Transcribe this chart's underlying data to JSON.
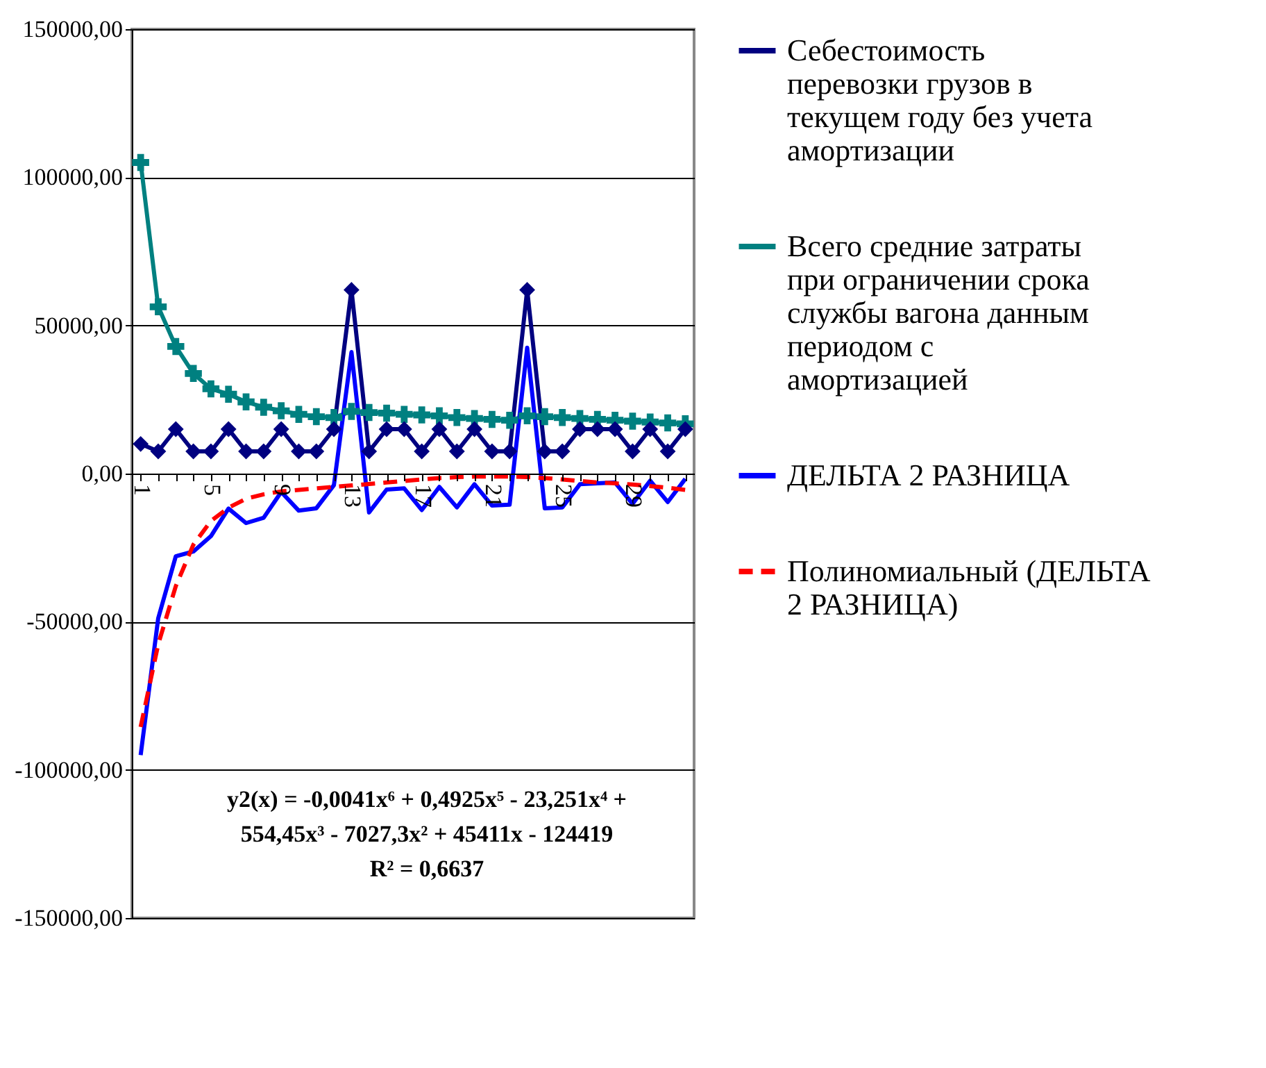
{
  "chart_data": {
    "type": "line",
    "categories": [
      "1",
      null,
      null,
      null,
      "5",
      null,
      null,
      null,
      "9",
      null,
      null,
      null,
      "13",
      null,
      null,
      null,
      "17",
      null,
      null,
      null,
      "21",
      null,
      null,
      null,
      "25",
      null,
      null,
      null,
      "29",
      null,
      null,
      null
    ],
    "series": [
      {
        "name": "Себестоимость перевозки грузов в текущем году без учета амортизации",
        "color": "#000080",
        "marker": "diamond",
        "values": [
          10000,
          7500,
          15000,
          7500,
          7500,
          15000,
          7500,
          7500,
          15000,
          7500,
          7500,
          15000,
          62000,
          7500,
          15000,
          15000,
          7500,
          15000,
          7500,
          15000,
          7500,
          7500,
          62000,
          7500,
          7500,
          15000,
          15000,
          15000,
          7500,
          15000,
          7500,
          15000
        ]
      },
      {
        "name": "Всего средние затраты при ограничении срока службы вагона данным периодом с амортизацией",
        "color": "#008080",
        "marker": "cross",
        "values": [
          105000,
          56300,
          42900,
          33800,
          28600,
          26800,
          24200,
          22400,
          21200,
          20000,
          19200,
          18900,
          21000,
          20600,
          20400,
          20000,
          19800,
          19500,
          18900,
          18600,
          18300,
          18000,
          19500,
          19200,
          18900,
          18600,
          18300,
          18000,
          17700,
          17400,
          17100,
          16800
        ]
      },
      {
        "name": "ДЕЛЬТА  2 РАЗНИЦА",
        "color": "#0000ff",
        "marker": "none",
        "values": [
          -95000,
          -48800,
          -27900,
          -26300,
          -21100,
          -11800,
          -16700,
          -14900,
          -6200,
          -12500,
          -11700,
          -3900,
          41000,
          -13100,
          -5400,
          -5000,
          -12300,
          -4500,
          -11400,
          -3600,
          -10800,
          -10500,
          42500,
          -11700,
          -11400,
          -3600,
          -3300,
          -3000,
          -10200,
          -2400,
          -9600,
          -1800
        ]
      },
      {
        "name": "Полиномиальный (ДЕЛЬТА  2 РАЗНИЦА)",
        "color": "#ff0000",
        "marker": "none",
        "line_style": "dashed",
        "values": [
          -85500,
          -57600,
          -38000,
          -24000,
          -16000,
          -11500,
          -8500,
          -7000,
          -6000,
          -5500,
          -5000,
          -4500,
          -4000,
          -3500,
          -3000,
          -2500,
          -2000,
          -1500,
          -1200,
          -1000,
          -1000,
          -1000,
          -1200,
          -1500,
          -2000,
          -2500,
          -3000,
          -3300,
          -3700,
          -4200,
          -4800,
          -5500
        ]
      }
    ],
    "ylim": [
      -150000,
      150000
    ],
    "yticks": [
      {
        "value": -150000,
        "label": "-150000,00"
      },
      {
        "value": -100000,
        "label": "-100000,00"
      },
      {
        "value": -50000,
        "label": "-50000,00"
      },
      {
        "value": 0,
        "label": "0,00"
      },
      {
        "value": 50000,
        "label": "50000,00"
      },
      {
        "value": 100000,
        "label": "100000,00"
      },
      {
        "value": 150000,
        "label": "150000,00"
      }
    ],
    "grid": "y",
    "legend": "right",
    "annotations": [
      "y2(x) = -0,0041x⁶ + 0,4925x⁵ - 23,251x⁴ + 554,45x³ - 7027,3x² + 45411x - 124419",
      "R² = 0,6637"
    ]
  }
}
